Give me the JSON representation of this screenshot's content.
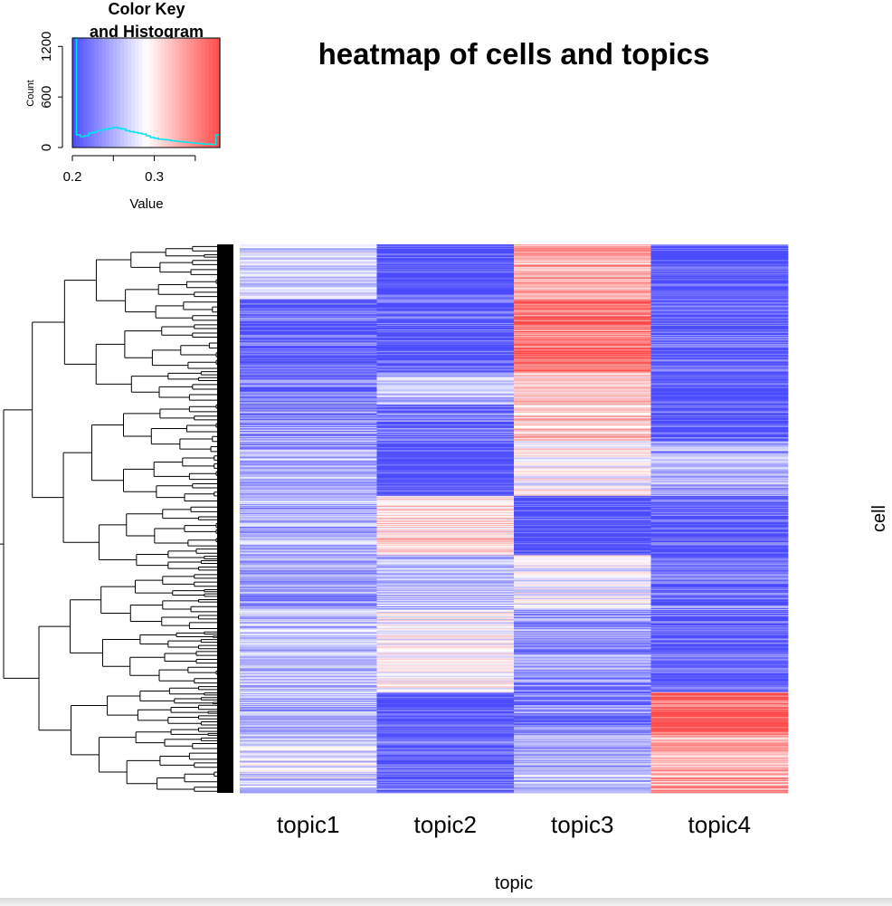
{
  "chart_data": [
    {
      "type": "heatmap",
      "title": "heatmap of cells and topics",
      "xlabel": "topic",
      "ylabel": "cell",
      "x_categories": [
        "topic1",
        "topic2",
        "topic3",
        "topic4"
      ],
      "row_count": 600,
      "row_dendrogram": true,
      "value_range": [
        0.2,
        0.38
      ],
      "colors": {
        "low": "#4a4aff",
        "mid": "#ffffff",
        "high": "#ff4a4a"
      },
      "blocks": [
        {
          "rows": [
            0,
            60
          ],
          "values": [
            0.27,
            0.2,
            0.33,
            0.2
          ]
        },
        {
          "rows": [
            60,
            140
          ],
          "values": [
            0.21,
            0.21,
            0.36,
            0.21
          ]
        },
        {
          "rows": [
            140,
            175
          ],
          "values": [
            0.22,
            0.26,
            0.31,
            0.2
          ]
        },
        {
          "rows": [
            175,
            215
          ],
          "values": [
            0.24,
            0.22,
            0.32,
            0.21
          ]
        },
        {
          "rows": [
            215,
            275
          ],
          "values": [
            0.25,
            0.2,
            0.29,
            0.25
          ]
        },
        {
          "rows": [
            275,
            340
          ],
          "values": [
            0.25,
            0.31,
            0.2,
            0.21
          ]
        },
        {
          "rows": [
            340,
            400
          ],
          "values": [
            0.24,
            0.26,
            0.28,
            0.22
          ]
        },
        {
          "rows": [
            400,
            490
          ],
          "values": [
            0.26,
            0.29,
            0.24,
            0.21
          ]
        },
        {
          "rows": [
            490,
            535
          ],
          "values": [
            0.25,
            0.2,
            0.23,
            0.37
          ]
        },
        {
          "rows": [
            535,
            600
          ],
          "values": [
            0.27,
            0.21,
            0.25,
            0.33
          ]
        }
      ]
    },
    {
      "type": "histogram",
      "title": "Color Key\nand Histogram",
      "xlabel": "Value",
      "ylabel": "Count",
      "xlim": [
        0.2,
        0.38
      ],
      "ylim": [
        0,
        1300
      ],
      "x_ticks": [
        "0.2",
        "0.3"
      ],
      "y_ticks": [
        "0",
        "600",
        "1200"
      ],
      "bins_x": [
        0.2,
        0.205,
        0.21,
        0.215,
        0.22,
        0.225,
        0.23,
        0.235,
        0.24,
        0.245,
        0.25,
        0.255,
        0.26,
        0.265,
        0.27,
        0.275,
        0.28,
        0.285,
        0.29,
        0.295,
        0.3,
        0.305,
        0.31,
        0.315,
        0.32,
        0.325,
        0.33,
        0.335,
        0.34,
        0.345,
        0.35,
        0.355,
        0.36,
        0.365,
        0.37,
        0.375
      ],
      "counts": [
        1300,
        150,
        130,
        140,
        170,
        180,
        200,
        210,
        220,
        230,
        240,
        230,
        220,
        200,
        190,
        180,
        170,
        160,
        140,
        120,
        110,
        100,
        95,
        90,
        80,
        75,
        70,
        65,
        60,
        55,
        50,
        45,
        40,
        40,
        35,
        150
      ],
      "line_color": "#00e5ee"
    }
  ]
}
